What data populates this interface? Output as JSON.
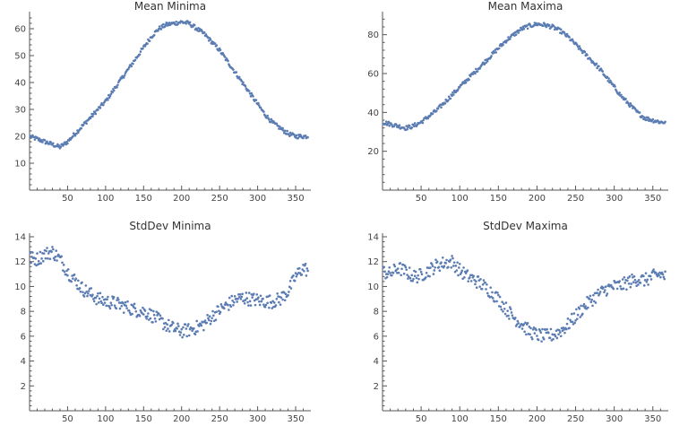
{
  "chart_data": [
    {
      "type": "scatter",
      "title": "Mean Minima",
      "xlim": [
        0,
        370
      ],
      "ylim": [
        0,
        65
      ],
      "x_ticks": [
        50,
        100,
        150,
        200,
        250,
        300,
        350
      ],
      "y_ticks": [
        10,
        20,
        30,
        40,
        50,
        60
      ],
      "color": "#5b7cb3",
      "grid": false,
      "x": [
        0,
        10,
        20,
        30,
        40,
        50,
        60,
        70,
        80,
        90,
        100,
        110,
        120,
        130,
        140,
        150,
        160,
        170,
        180,
        190,
        200,
        210,
        220,
        230,
        240,
        250,
        260,
        270,
        280,
        290,
        300,
        310,
        320,
        330,
        340,
        350,
        360,
        366
      ],
      "y": [
        20,
        19,
        18,
        17,
        16,
        18,
        21,
        24,
        27,
        30,
        33,
        37,
        41,
        45,
        49,
        53,
        57,
        60,
        61.5,
        62,
        62.5,
        62,
        60,
        58,
        55,
        52,
        48,
        44,
        40,
        36,
        32,
        28,
        25,
        23,
        21,
        20,
        20,
        20
      ]
    },
    {
      "type": "scatter",
      "title": "Mean Maxima",
      "xlim": [
        0,
        370
      ],
      "ylim": [
        0,
        90
      ],
      "x_ticks": [
        50,
        100,
        150,
        200,
        250,
        300,
        350
      ],
      "y_ticks": [
        20,
        40,
        60,
        80
      ],
      "color": "#5b7cb3",
      "grid": false,
      "x": [
        0,
        10,
        20,
        30,
        40,
        50,
        60,
        70,
        80,
        90,
        100,
        110,
        120,
        130,
        140,
        150,
        160,
        170,
        180,
        190,
        200,
        210,
        220,
        230,
        240,
        250,
        260,
        270,
        280,
        290,
        300,
        310,
        320,
        330,
        340,
        350,
        360,
        366
      ],
      "y": [
        35,
        34,
        33,
        32,
        33,
        35,
        38,
        41,
        45,
        49,
        53,
        57,
        61,
        65,
        69,
        73,
        77,
        80,
        83,
        84.5,
        85.5,
        85,
        84,
        82,
        79,
        75,
        71,
        67,
        63,
        58,
        53,
        48,
        44,
        40,
        37,
        36,
        35,
        35
      ]
    },
    {
      "type": "scatter",
      "title": "StdDev Minima",
      "xlim": [
        0,
        370
      ],
      "ylim": [
        0,
        14
      ],
      "x_ticks": [
        50,
        100,
        150,
        200,
        250,
        300,
        350
      ],
      "y_ticks": [
        2,
        4,
        6,
        8,
        10,
        12,
        14
      ],
      "color": "#5b7cb3",
      "grid": false,
      "x": [
        0,
        10,
        20,
        30,
        40,
        50,
        60,
        70,
        80,
        90,
        100,
        110,
        120,
        130,
        140,
        150,
        160,
        170,
        180,
        190,
        200,
        210,
        220,
        230,
        240,
        250,
        260,
        270,
        280,
        290,
        300,
        310,
        320,
        330,
        340,
        350,
        360,
        366
      ],
      "y": [
        12.3,
        12.2,
        12.6,
        12.8,
        12.2,
        11.2,
        10.5,
        9.8,
        9.4,
        9.0,
        8.8,
        8.7,
        8.5,
        8.3,
        8.1,
        8.0,
        7.7,
        7.3,
        6.9,
        6.6,
        6.4,
        6.5,
        6.7,
        7.0,
        7.6,
        8.1,
        8.5,
        8.9,
        9.1,
        9.0,
        8.9,
        8.8,
        8.8,
        9.0,
        9.6,
        10.8,
        11.5,
        11.3
      ]
    },
    {
      "type": "scatter",
      "title": "StdDev Maxima",
      "xlim": [
        0,
        370
      ],
      "ylim": [
        0,
        14
      ],
      "x_ticks": [
        50,
        100,
        150,
        200,
        250,
        300,
        350
      ],
      "y_ticks": [
        2,
        4,
        6,
        8,
        10,
        12,
        14
      ],
      "color": "#5b7cb3",
      "grid": false,
      "x": [
        0,
        10,
        20,
        30,
        40,
        50,
        60,
        70,
        80,
        90,
        100,
        110,
        120,
        130,
        140,
        150,
        160,
        170,
        180,
        190,
        200,
        210,
        220,
        230,
        240,
        250,
        260,
        270,
        280,
        290,
        300,
        310,
        320,
        330,
        340,
        350,
        360,
        366
      ],
      "y": [
        11.2,
        11.0,
        11.5,
        11.2,
        10.8,
        10.9,
        11.3,
        11.7,
        11.9,
        12.0,
        11.3,
        10.8,
        10.5,
        10.1,
        9.6,
        9.0,
        8.2,
        7.5,
        7.0,
        6.4,
        6.1,
        6.0,
        6.1,
        6.4,
        6.9,
        7.6,
        8.3,
        8.9,
        9.4,
        9.8,
        10.0,
        10.1,
        10.4,
        10.6,
        10.5,
        10.8,
        11.0,
        10.8
      ]
    }
  ]
}
